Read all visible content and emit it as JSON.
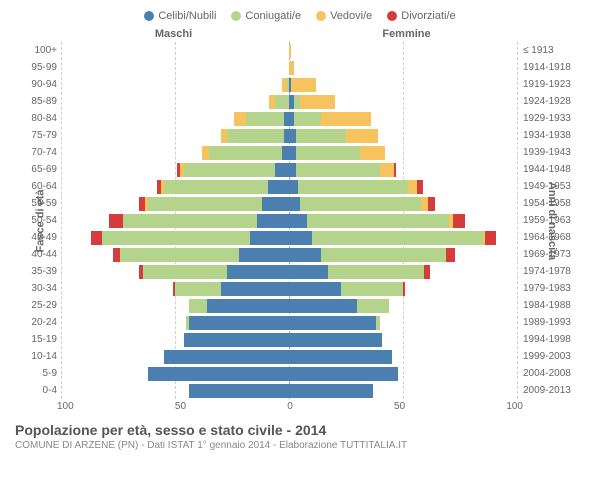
{
  "legend": [
    {
      "label": "Celibi/Nubili",
      "color": "#4a7fb0"
    },
    {
      "label": "Coniugati/e",
      "color": "#b4d48c"
    },
    {
      "label": "Vedovi/e",
      "color": "#f7c35f"
    },
    {
      "label": "Divorziati/e",
      "color": "#d73c3c"
    }
  ],
  "header_male": "Maschi",
  "header_female": "Femmine",
  "y_title_left": "Fasce di età",
  "y_title_right": "Anni di nascita",
  "x_ticks": [
    "100",
    "50",
    "0",
    "50",
    "100"
  ],
  "x_max": 100,
  "colors": {
    "celibi": "#4a7fb0",
    "coniugati": "#b4d48c",
    "vedovi": "#f7c35f",
    "divorziati": "#d73c3c",
    "grid": "#d0d0d0",
    "center_grid": "#aaa",
    "bg": "#ffffff"
  },
  "rows": [
    {
      "age": "100+",
      "birth": "≤ 1913",
      "m": {
        "c": 0,
        "co": 0,
        "v": 0,
        "d": 0
      },
      "f": {
        "c": 0,
        "co": 0,
        "v": 1,
        "d": 0
      }
    },
    {
      "age": "95-99",
      "birth": "1914-1918",
      "m": {
        "c": 0,
        "co": 0,
        "v": 0,
        "d": 0
      },
      "f": {
        "c": 0,
        "co": 0,
        "v": 2,
        "d": 0
      }
    },
    {
      "age": "90-94",
      "birth": "1919-1923",
      "m": {
        "c": 0,
        "co": 1,
        "v": 2,
        "d": 0
      },
      "f": {
        "c": 1,
        "co": 0,
        "v": 11,
        "d": 0
      }
    },
    {
      "age": "85-89",
      "birth": "1924-1928",
      "m": {
        "c": 0,
        "co": 6,
        "v": 3,
        "d": 0
      },
      "f": {
        "c": 2,
        "co": 3,
        "v": 15,
        "d": 0
      }
    },
    {
      "age": "80-84",
      "birth": "1929-1933",
      "m": {
        "c": 2,
        "co": 17,
        "v": 5,
        "d": 0
      },
      "f": {
        "c": 2,
        "co": 12,
        "v": 22,
        "d": 0
      }
    },
    {
      "age": "75-79",
      "birth": "1934-1938",
      "m": {
        "c": 2,
        "co": 25,
        "v": 3,
        "d": 0
      },
      "f": {
        "c": 3,
        "co": 22,
        "v": 14,
        "d": 0
      }
    },
    {
      "age": "70-74",
      "birth": "1939-1943",
      "m": {
        "c": 3,
        "co": 32,
        "v": 3,
        "d": 0
      },
      "f": {
        "c": 3,
        "co": 28,
        "v": 11,
        "d": 0
      }
    },
    {
      "age": "65-69",
      "birth": "1944-1948",
      "m": {
        "c": 6,
        "co": 40,
        "v": 2,
        "d": 1
      },
      "f": {
        "c": 3,
        "co": 37,
        "v": 6,
        "d": 1
      }
    },
    {
      "age": "60-64",
      "birth": "1949-1953",
      "m": {
        "c": 9,
        "co": 46,
        "v": 1,
        "d": 2
      },
      "f": {
        "c": 4,
        "co": 48,
        "v": 4,
        "d": 3
      }
    },
    {
      "age": "55-59",
      "birth": "1954-1958",
      "m": {
        "c": 12,
        "co": 50,
        "v": 1,
        "d": 3
      },
      "f": {
        "c": 5,
        "co": 53,
        "v": 3,
        "d": 3
      }
    },
    {
      "age": "50-54",
      "birth": "1959-1963",
      "m": {
        "c": 14,
        "co": 59,
        "v": 0,
        "d": 6
      },
      "f": {
        "c": 8,
        "co": 62,
        "v": 2,
        "d": 5
      }
    },
    {
      "age": "45-49",
      "birth": "1964-1968",
      "m": {
        "c": 17,
        "co": 65,
        "v": 0,
        "d": 5
      },
      "f": {
        "c": 10,
        "co": 75,
        "v": 1,
        "d": 5
      }
    },
    {
      "age": "40-44",
      "birth": "1969-1973",
      "m": {
        "c": 22,
        "co": 52,
        "v": 0,
        "d": 3
      },
      "f": {
        "c": 14,
        "co": 55,
        "v": 0,
        "d": 4
      }
    },
    {
      "age": "35-39",
      "birth": "1974-1978",
      "m": {
        "c": 27,
        "co": 37,
        "v": 0,
        "d": 2
      },
      "f": {
        "c": 17,
        "co": 42,
        "v": 0,
        "d": 3
      }
    },
    {
      "age": "30-34",
      "birth": "1979-1983",
      "m": {
        "c": 30,
        "co": 20,
        "v": 0,
        "d": 1
      },
      "f": {
        "c": 23,
        "co": 27,
        "v": 0,
        "d": 1
      }
    },
    {
      "age": "25-29",
      "birth": "1984-1988",
      "m": {
        "c": 36,
        "co": 8,
        "v": 0,
        "d": 0
      },
      "f": {
        "c": 30,
        "co": 14,
        "v": 0,
        "d": 0
      }
    },
    {
      "age": "20-24",
      "birth": "1989-1993",
      "m": {
        "c": 44,
        "co": 1,
        "v": 0,
        "d": 0
      },
      "f": {
        "c": 38,
        "co": 2,
        "v": 0,
        "d": 0
      }
    },
    {
      "age": "15-19",
      "birth": "1994-1998",
      "m": {
        "c": 46,
        "co": 0,
        "v": 0,
        "d": 0
      },
      "f": {
        "c": 41,
        "co": 0,
        "v": 0,
        "d": 0
      }
    },
    {
      "age": "10-14",
      "birth": "1999-2003",
      "m": {
        "c": 55,
        "co": 0,
        "v": 0,
        "d": 0
      },
      "f": {
        "c": 45,
        "co": 0,
        "v": 0,
        "d": 0
      }
    },
    {
      "age": "5-9",
      "birth": "2004-2008",
      "m": {
        "c": 62,
        "co": 0,
        "v": 0,
        "d": 0
      },
      "f": {
        "c": 48,
        "co": 0,
        "v": 0,
        "d": 0
      }
    },
    {
      "age": "0-4",
      "birth": "2009-2013",
      "m": {
        "c": 44,
        "co": 0,
        "v": 0,
        "d": 0
      },
      "f": {
        "c": 37,
        "co": 0,
        "v": 0,
        "d": 0
      }
    }
  ],
  "title": "Popolazione per età, sesso e stato civile - 2014",
  "subtitle": "COMUNE DI ARZENE (PN) - Dati ISTAT 1° gennaio 2014 - Elaborazione TUTTITALIA.IT"
}
